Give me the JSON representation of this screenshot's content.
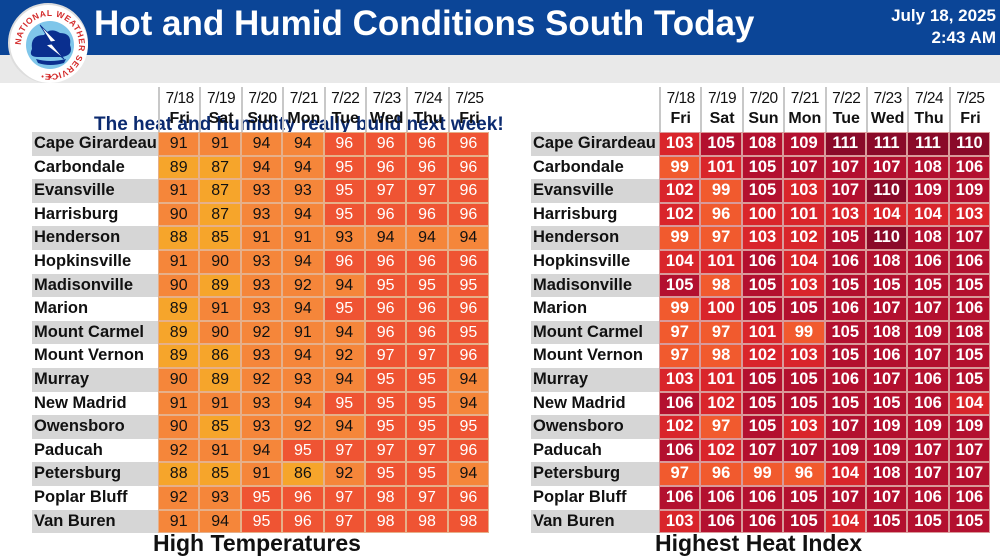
{
  "header": {
    "title": "Hot and Humid Conditions South Today",
    "date": "July 18, 2025",
    "time": "2:43 AM",
    "subtitle": "The heat and humidity really build next week!",
    "logo_text": "NATIONAL WEATHER SERVICE",
    "bar_color": "#0b4597"
  },
  "days": [
    {
      "date": "7/18",
      "dow": "Fri"
    },
    {
      "date": "7/19",
      "dow": "Sat"
    },
    {
      "date": "7/20",
      "dow": "Sun"
    },
    {
      "date": "7/21",
      "dow": "Mon"
    },
    {
      "date": "7/22",
      "dow": "Tue"
    },
    {
      "date": "7/23",
      "dow": "Wed"
    },
    {
      "date": "7/24",
      "dow": "Thu"
    },
    {
      "date": "7/25",
      "dow": "Fri"
    }
  ],
  "high_temps": {
    "caption": "High Temperatures",
    "rows": [
      {
        "city": "Cape Girardeau",
        "values": [
          91,
          91,
          94,
          94,
          96,
          96,
          96,
          96
        ]
      },
      {
        "city": "Carbondale",
        "values": [
          89,
          87,
          94,
          94,
          95,
          96,
          96,
          96
        ]
      },
      {
        "city": "Evansville",
        "values": [
          91,
          87,
          93,
          93,
          95,
          97,
          97,
          96
        ]
      },
      {
        "city": "Harrisburg",
        "values": [
          90,
          87,
          93,
          94,
          95,
          96,
          96,
          96
        ]
      },
      {
        "city": "Henderson",
        "values": [
          88,
          85,
          91,
          91,
          93,
          94,
          94,
          94
        ]
      },
      {
        "city": "Hopkinsville",
        "values": [
          91,
          90,
          93,
          94,
          96,
          96,
          96,
          96
        ]
      },
      {
        "city": "Madisonville",
        "values": [
          90,
          89,
          93,
          92,
          94,
          95,
          95,
          95
        ]
      },
      {
        "city": "Marion",
        "values": [
          89,
          91,
          93,
          94,
          95,
          96,
          96,
          96
        ]
      },
      {
        "city": "Mount Carmel",
        "values": [
          89,
          90,
          92,
          91,
          94,
          96,
          96,
          95
        ]
      },
      {
        "city": "Mount Vernon",
        "values": [
          89,
          86,
          93,
          94,
          92,
          97,
          97,
          96
        ]
      },
      {
        "city": "Murray",
        "values": [
          90,
          89,
          92,
          93,
          94,
          95,
          95,
          94
        ]
      },
      {
        "city": "New Madrid",
        "values": [
          91,
          91,
          93,
          94,
          95,
          95,
          95,
          94
        ]
      },
      {
        "city": "Owensboro",
        "values": [
          90,
          85,
          93,
          92,
          94,
          95,
          95,
          95
        ]
      },
      {
        "city": "Paducah",
        "values": [
          92,
          91,
          94,
          95,
          97,
          97,
          97,
          96
        ]
      },
      {
        "city": "Petersburg",
        "values": [
          88,
          85,
          91,
          86,
          92,
          95,
          95,
          94
        ]
      },
      {
        "city": "Poplar Bluff",
        "values": [
          92,
          93,
          95,
          96,
          97,
          98,
          97,
          96
        ]
      },
      {
        "city": "Van Buren",
        "values": [
          91,
          94,
          95,
          96,
          97,
          98,
          98,
          98
        ]
      }
    ]
  },
  "heat_index": {
    "caption": "Highest Heat Index",
    "rows": [
      {
        "city": "Cape Girardeau",
        "values": [
          103,
          105,
          108,
          109,
          111,
          111,
          111,
          110
        ]
      },
      {
        "city": "Carbondale",
        "values": [
          99,
          101,
          105,
          107,
          107,
          107,
          108,
          106
        ]
      },
      {
        "city": "Evansville",
        "values": [
          102,
          99,
          105,
          103,
          107,
          110,
          109,
          109
        ]
      },
      {
        "city": "Harrisburg",
        "values": [
          102,
          96,
          100,
          101,
          103,
          104,
          104,
          103
        ]
      },
      {
        "city": "Henderson",
        "values": [
          99,
          97,
          103,
          102,
          105,
          110,
          108,
          107
        ]
      },
      {
        "city": "Hopkinsville",
        "values": [
          104,
          101,
          106,
          104,
          106,
          108,
          106,
          106
        ]
      },
      {
        "city": "Madisonville",
        "values": [
          105,
          98,
          105,
          103,
          105,
          105,
          105,
          105
        ]
      },
      {
        "city": "Marion",
        "values": [
          99,
          100,
          105,
          105,
          106,
          107,
          107,
          106
        ]
      },
      {
        "city": "Mount Carmel",
        "values": [
          97,
          97,
          101,
          99,
          105,
          108,
          109,
          108
        ]
      },
      {
        "city": "Mount Vernon",
        "values": [
          97,
          98,
          102,
          103,
          105,
          106,
          107,
          105
        ]
      },
      {
        "city": "Murray",
        "values": [
          103,
          101,
          105,
          105,
          106,
          107,
          106,
          105
        ]
      },
      {
        "city": "New Madrid",
        "values": [
          106,
          102,
          105,
          105,
          105,
          105,
          106,
          104
        ]
      },
      {
        "city": "Owensboro",
        "values": [
          102,
          97,
          105,
          103,
          107,
          109,
          109,
          109
        ]
      },
      {
        "city": "Paducah",
        "values": [
          106,
          102,
          107,
          107,
          109,
          109,
          107,
          107
        ]
      },
      {
        "city": "Petersburg",
        "values": [
          97,
          96,
          99,
          96,
          104,
          108,
          107,
          107
        ]
      },
      {
        "city": "Poplar Bluff",
        "values": [
          106,
          106,
          106,
          105,
          107,
          107,
          106,
          106
        ]
      },
      {
        "city": "Van Buren",
        "values": [
          103,
          106,
          106,
          105,
          104,
          105,
          105,
          105
        ]
      }
    ]
  },
  "colors": {
    "temp_le89": "#f6a52b",
    "temp_90_94": "#f5863a",
    "temp_ge95": "#ef5433",
    "hi_96_99": "#f15a2e",
    "hi_100_104": "#d9252b",
    "hi_105_109": "#b3102f",
    "hi_ge110": "#8a0a29",
    "row_alt": "#d6d6d6"
  },
  "chart_data": [
    {
      "type": "table",
      "title": "High Temperatures",
      "columns": [
        "7/18 Fri",
        "7/19 Sat",
        "7/20 Sun",
        "7/21 Mon",
        "7/22 Tue",
        "7/23 Wed",
        "7/24 Thu",
        "7/25 Fri"
      ],
      "rows": [
        "Cape Girardeau",
        "Carbondale",
        "Evansville",
        "Harrisburg",
        "Henderson",
        "Hopkinsville",
        "Madisonville",
        "Marion",
        "Mount Carmel",
        "Mount Vernon",
        "Murray",
        "New Madrid",
        "Owensboro",
        "Paducah",
        "Petersburg",
        "Poplar Bluff",
        "Van Buren"
      ],
      "values": [
        [
          91,
          91,
          94,
          94,
          96,
          96,
          96,
          96
        ],
        [
          89,
          87,
          94,
          94,
          95,
          96,
          96,
          96
        ],
        [
          91,
          87,
          93,
          93,
          95,
          97,
          97,
          96
        ],
        [
          90,
          87,
          93,
          94,
          95,
          96,
          96,
          96
        ],
        [
          88,
          85,
          91,
          91,
          93,
          94,
          94,
          94
        ],
        [
          91,
          90,
          93,
          94,
          96,
          96,
          96,
          96
        ],
        [
          90,
          89,
          93,
          92,
          94,
          95,
          95,
          95
        ],
        [
          89,
          91,
          93,
          94,
          95,
          96,
          96,
          96
        ],
        [
          89,
          90,
          92,
          91,
          94,
          96,
          96,
          95
        ],
        [
          89,
          86,
          93,
          94,
          92,
          97,
          97,
          96
        ],
        [
          90,
          89,
          92,
          93,
          94,
          95,
          95,
          94
        ],
        [
          91,
          91,
          93,
          94,
          95,
          95,
          95,
          94
        ],
        [
          90,
          85,
          93,
          92,
          94,
          95,
          95,
          95
        ],
        [
          92,
          91,
          94,
          95,
          97,
          97,
          97,
          96
        ],
        [
          88,
          85,
          91,
          86,
          92,
          95,
          95,
          94
        ],
        [
          92,
          93,
          95,
          96,
          97,
          98,
          97,
          96
        ],
        [
          91,
          94,
          95,
          96,
          97,
          98,
          98,
          98
        ]
      ]
    },
    {
      "type": "table",
      "title": "Highest Heat Index",
      "columns": [
        "7/18 Fri",
        "7/19 Sat",
        "7/20 Sun",
        "7/21 Mon",
        "7/22 Tue",
        "7/23 Wed",
        "7/24 Thu",
        "7/25 Fri"
      ],
      "rows": [
        "Cape Girardeau",
        "Carbondale",
        "Evansville",
        "Harrisburg",
        "Henderson",
        "Hopkinsville",
        "Madisonville",
        "Marion",
        "Mount Carmel",
        "Mount Vernon",
        "Murray",
        "New Madrid",
        "Owensboro",
        "Paducah",
        "Petersburg",
        "Poplar Bluff",
        "Van Buren"
      ],
      "values": [
        [
          103,
          105,
          108,
          109,
          111,
          111,
          111,
          110
        ],
        [
          99,
          101,
          105,
          107,
          107,
          107,
          108,
          106
        ],
        [
          102,
          99,
          105,
          103,
          107,
          110,
          109,
          109
        ],
        [
          102,
          96,
          100,
          101,
          103,
          104,
          104,
          103
        ],
        [
          99,
          97,
          103,
          102,
          105,
          110,
          108,
          107
        ],
        [
          104,
          101,
          106,
          104,
          106,
          108,
          106,
          106
        ],
        [
          105,
          98,
          105,
          103,
          105,
          105,
          105,
          105
        ],
        [
          99,
          100,
          105,
          105,
          106,
          107,
          107,
          106
        ],
        [
          97,
          97,
          101,
          99,
          105,
          108,
          109,
          108
        ],
        [
          97,
          98,
          102,
          103,
          105,
          106,
          107,
          105
        ],
        [
          103,
          101,
          105,
          105,
          106,
          107,
          106,
          105
        ],
        [
          106,
          102,
          105,
          105,
          105,
          105,
          106,
          104
        ],
        [
          102,
          97,
          105,
          103,
          107,
          109,
          109,
          109
        ],
        [
          106,
          102,
          107,
          107,
          109,
          109,
          107,
          107
        ],
        [
          97,
          96,
          99,
          96,
          104,
          108,
          107,
          107
        ],
        [
          106,
          106,
          106,
          105,
          107,
          107,
          106,
          106
        ],
        [
          103,
          106,
          106,
          105,
          104,
          105,
          105,
          105
        ]
      ]
    }
  ]
}
